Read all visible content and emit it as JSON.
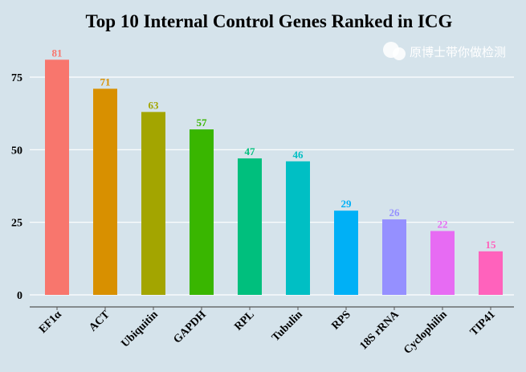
{
  "chart_data": {
    "type": "bar",
    "title": "Top 10 Internal Control Genes Ranked in ICG",
    "xlabel": "",
    "ylabel": "",
    "categories": [
      "EF1α",
      "ACT",
      "Ubiquitin",
      "GAPDH",
      "RPL",
      "Tubulin",
      "RPS",
      "18S rRNA",
      "Cyclophilin",
      "TIP41"
    ],
    "values": [
      81,
      71,
      63,
      57,
      47,
      46,
      29,
      26,
      22,
      15
    ],
    "colors": [
      "#F8766D",
      "#D89000",
      "#A3A500",
      "#39B600",
      "#00BF7D",
      "#00BFC4",
      "#00B0F6",
      "#9590FF",
      "#E76BF3",
      "#FF62BC"
    ],
    "yticks": [
      0,
      25,
      50,
      75
    ],
    "ylim": [
      0,
      85
    ],
    "grid": "horizontal",
    "data_labels": true
  },
  "watermark": "原博士带你做检测"
}
